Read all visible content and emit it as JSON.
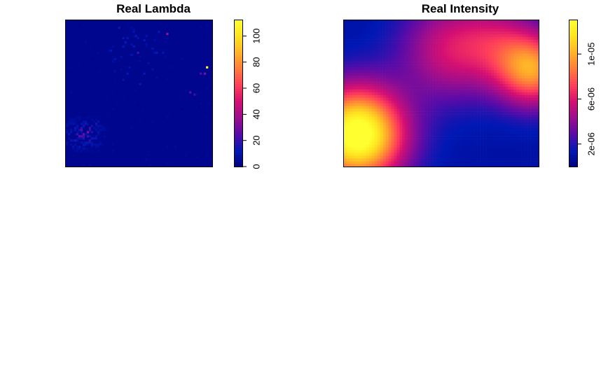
{
  "chart_data": [
    {
      "type": "heatmap",
      "title": "Real Lambda",
      "xlabel": "",
      "ylabel": "",
      "colorbar": {
        "range": [
          0,
          112
        ],
        "ticks": [
          0,
          20,
          40,
          60,
          80,
          100
        ],
        "tick_labels": [
          "0",
          "20",
          "40",
          "60",
          "80",
          "100"
        ]
      },
      "grid": false,
      "palette": [
        "#000080",
        "#0018B4",
        "#5A0BA8",
        "#9B0E8E",
        "#D40F73",
        "#FF3D5A",
        "#FF7A3C",
        "#FFB327",
        "#FFE21F",
        "#FFFF30"
      ],
      "hotspots": [
        {
          "x": 0.963,
          "y": 0.685,
          "value": 108
        },
        {
          "x": 0.948,
          "y": 0.64,
          "value": 32
        },
        {
          "x": 0.921,
          "y": 0.633,
          "value": 24
        },
        {
          "x": 0.688,
          "y": 0.91,
          "value": 38
        },
        {
          "x": 0.463,
          "y": 0.828,
          "value": 14
        },
        {
          "x": 0.488,
          "y": 0.784,
          "value": 22
        },
        {
          "x": 0.448,
          "y": 0.762,
          "value": 12
        },
        {
          "x": 0.563,
          "y": 0.712,
          "value": 10
        },
        {
          "x": 0.857,
          "y": 0.508,
          "value": 26
        },
        {
          "x": 0.883,
          "y": 0.497,
          "value": 20
        },
        {
          "x": 0.12,
          "y": 0.225,
          "value": 30
        },
        {
          "x": 0.095,
          "y": 0.2,
          "value": 26
        },
        {
          "x": 0.145,
          "y": 0.24,
          "value": 34
        },
        {
          "x": 0.17,
          "y": 0.26,
          "value": 22
        },
        {
          "x": 0.07,
          "y": 0.175,
          "value": 18
        },
        {
          "x": 0.2,
          "y": 0.29,
          "value": 16
        },
        {
          "x": 0.055,
          "y": 0.14,
          "value": 12
        },
        {
          "x": 0.105,
          "y": 0.255,
          "value": 24
        },
        {
          "x": 0.225,
          "y": 0.31,
          "value": 12
        }
      ]
    },
    {
      "type": "heatmap",
      "title": "Real Intensity",
      "xlabel": "",
      "ylabel": "",
      "colorbar": {
        "range": [
          0,
          1.3e-05
        ],
        "ticks": [
          2e-06,
          6e-06,
          1e-05
        ],
        "tick_labels": [
          "2e-06",
          "6e-06",
          "1e-05"
        ]
      },
      "grid": false,
      "palette": [
        "#000080",
        "#0018B4",
        "#5A0BA8",
        "#9B0E8E",
        "#D40F73",
        "#FF3D5A",
        "#FF7A3C",
        "#FFB327",
        "#FFE21F",
        "#FFFF30"
      ],
      "peaks": [
        {
          "x": 0.07,
          "y": 0.22,
          "amplitude": 1.3e-05,
          "spread": 0.17
        },
        {
          "x": 0.97,
          "y": 0.66,
          "amplitude": 8e-06,
          "spread": 0.13
        },
        {
          "x": 0.55,
          "y": 0.8,
          "amplitude": 4.6e-06,
          "spread": 0.18
        },
        {
          "x": 0.8,
          "y": 0.86,
          "amplitude": 2.8e-06,
          "spread": 0.14
        }
      ],
      "baseline": 1e-06
    }
  ]
}
